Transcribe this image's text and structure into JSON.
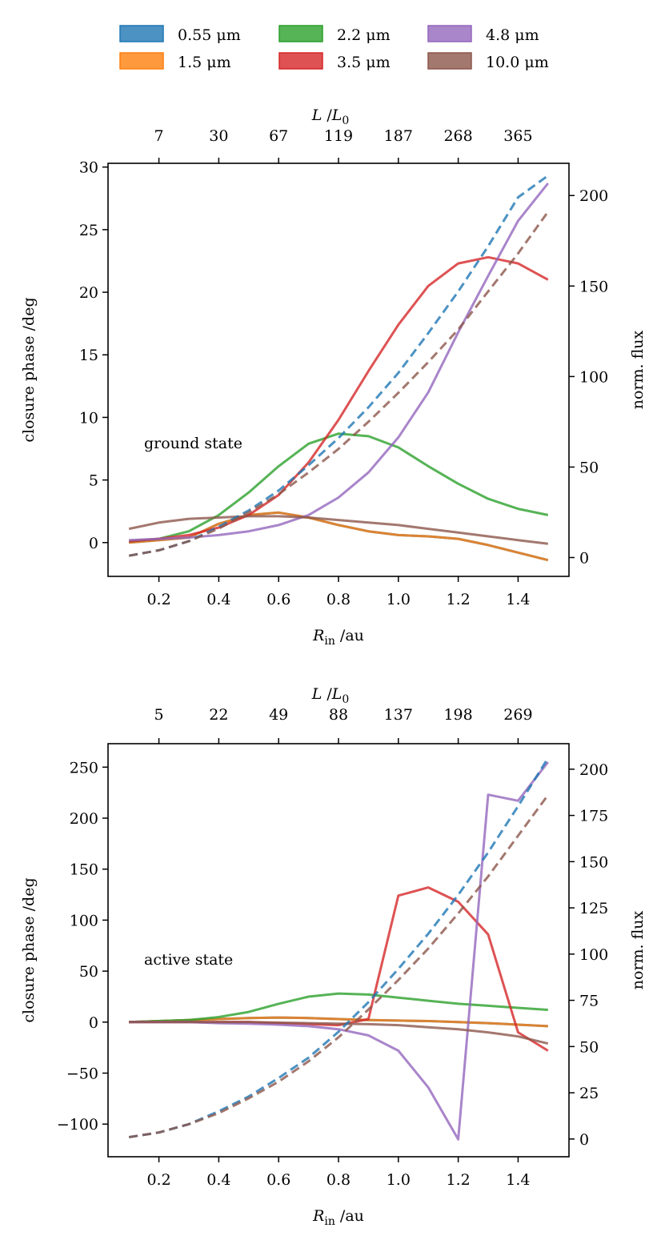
{
  "colors": {
    "blue": "#1f77b4",
    "orange": "#ff7f0e",
    "green": "#2ca02c",
    "red": "#d62728",
    "purple": "#9467bd",
    "brown": "#8c564b"
  },
  "legend": [
    {
      "label": "0.55 μm",
      "color": "#1f77b4"
    },
    {
      "label": "1.5 μm",
      "color": "#ff7f0e"
    },
    {
      "label": "2.2 μm",
      "color": "#2ca02c"
    },
    {
      "label": "3.5 μm",
      "color": "#d62728"
    },
    {
      "label": "4.8 μm",
      "color": "#9467bd"
    },
    {
      "label": "10.0 μm",
      "color": "#8c564b"
    }
  ],
  "chart_data": [
    {
      "type": "line",
      "annotation": "ground state",
      "xlabel": "R_in /au",
      "ylabel": "closure phase /deg",
      "ylabel_right": "norm. flux",
      "xlabel_top": "L /L_0",
      "xlim": [
        0.03,
        1.57
      ],
      "ylim": [
        -2.7,
        30.3
      ],
      "ylim_right": [
        -10.4,
        217.8
      ],
      "xticks": [
        "0.2",
        "0.4",
        "0.6",
        "0.8",
        "1.0",
        "1.2",
        "1.4"
      ],
      "xtick_values": [
        0.2,
        0.4,
        0.6,
        0.8,
        1.0,
        1.2,
        1.4
      ],
      "yticks": [
        "0",
        "5",
        "10",
        "15",
        "20",
        "25",
        "30"
      ],
      "ytick_values": [
        0,
        5,
        10,
        15,
        20,
        25,
        30
      ],
      "yticks_right": [
        "0",
        "50",
        "100",
        "150",
        "200"
      ],
      "ytick_values_right": [
        0,
        50,
        100,
        150,
        200
      ],
      "xticks_top": [
        "7",
        "30",
        "67",
        "119",
        "187",
        "268",
        "365"
      ],
      "x": [
        0.1,
        0.2,
        0.3,
        0.4,
        0.5,
        0.6,
        0.7,
        0.8,
        0.9,
        1.0,
        1.1,
        1.2,
        1.3,
        1.4,
        1.5
      ],
      "series": [
        {
          "name": "0.55 μm",
          "axis": "left",
          "values": [
            0.0,
            0.2,
            0.4,
            1.5,
            2.2,
            2.4,
            2.0,
            1.4,
            0.9,
            0.6,
            0.5,
            0.3,
            -0.2,
            -0.8,
            -1.4
          ]
        },
        {
          "name": "1.5 μm",
          "axis": "left",
          "values": [
            0.0,
            0.2,
            0.4,
            1.5,
            2.2,
            2.4,
            2.0,
            1.4,
            0.9,
            0.6,
            0.5,
            0.3,
            -0.2,
            -0.8,
            -1.4
          ]
        },
        {
          "name": "2.2 μm",
          "axis": "left",
          "values": [
            0.1,
            0.3,
            0.9,
            2.2,
            4.0,
            6.1,
            7.9,
            8.7,
            8.5,
            7.6,
            6.1,
            4.7,
            3.5,
            2.7,
            2.2
          ]
        },
        {
          "name": "3.5 μm",
          "axis": "left",
          "values": [
            0.1,
            0.3,
            0.6,
            1.2,
            2.2,
            3.8,
            6.4,
            9.8,
            13.7,
            17.4,
            20.5,
            22.3,
            22.8,
            22.3,
            21.0
          ]
        },
        {
          "name": "4.8 μm",
          "axis": "left",
          "values": [
            0.2,
            0.3,
            0.4,
            0.6,
            0.9,
            1.4,
            2.2,
            3.6,
            5.6,
            8.4,
            12.0,
            16.8,
            21.3,
            25.7,
            28.7
          ]
        },
        {
          "name": "10.0 μm",
          "axis": "left",
          "values": [
            1.1,
            1.6,
            1.9,
            2.0,
            2.1,
            2.1,
            2.0,
            1.8,
            1.6,
            1.4,
            1.1,
            0.8,
            0.5,
            0.2,
            -0.1
          ]
        },
        {
          "name": "0.55 μm flux",
          "axis": "right",
          "dashed": true,
          "values": [
            1,
            4,
            9,
            17,
            26,
            37,
            51,
            66,
            83,
            102,
            124,
            147,
            172,
            199,
            211
          ]
        },
        {
          "name": "10.0 μm flux",
          "axis": "right",
          "dashed": true,
          "values": [
            1,
            4,
            9,
            16,
            25,
            35,
            47,
            60,
            75,
            91,
            108,
            126,
            147,
            168,
            191
          ]
        }
      ]
    },
    {
      "type": "line",
      "annotation": "active state",
      "xlabel": "R_in /au",
      "ylabel": "closure phase /deg",
      "ylabel_right": "norm. flux",
      "xlabel_top": "L /L_0",
      "xlim": [
        0.03,
        1.57
      ],
      "ylim": [
        -132,
        273
      ],
      "ylim_right": [
        -9.6,
        213.8
      ],
      "xticks": [
        "0.2",
        "0.4",
        "0.6",
        "0.8",
        "1.0",
        "1.2",
        "1.4"
      ],
      "xtick_values": [
        0.2,
        0.4,
        0.6,
        0.8,
        1.0,
        1.2,
        1.4
      ],
      "yticks": [
        "−100",
        "−50",
        "0",
        "50",
        "100",
        "150",
        "200",
        "250"
      ],
      "ytick_values": [
        -100,
        -50,
        0,
        50,
        100,
        150,
        200,
        250
      ],
      "yticks_right": [
        "0",
        "25",
        "50",
        "75",
        "100",
        "125",
        "150",
        "175",
        "200"
      ],
      "ytick_values_right": [
        0,
        25,
        50,
        75,
        100,
        125,
        150,
        175,
        200
      ],
      "xticks_top": [
        "5",
        "22",
        "49",
        "88",
        "137",
        "198",
        "269"
      ],
      "x": [
        0.1,
        0.2,
        0.3,
        0.4,
        0.5,
        0.6,
        0.7,
        0.8,
        0.9,
        1.0,
        1.1,
        1.2,
        1.3,
        1.4,
        1.5
      ],
      "series": [
        {
          "name": "0.55 μm",
          "axis": "left",
          "values": [
            0,
            1,
            2,
            3,
            4,
            4.5,
            4,
            3,
            2,
            1.5,
            1,
            0,
            -1,
            -2.5,
            -4
          ]
        },
        {
          "name": "1.5 μm",
          "axis": "left",
          "values": [
            0,
            1,
            2,
            3,
            4,
            4.5,
            4,
            3,
            2,
            1.5,
            1,
            0,
            -1,
            -2.5,
            -4
          ]
        },
        {
          "name": "2.2 μm",
          "axis": "left",
          "values": [
            0,
            1,
            2,
            5,
            10,
            18,
            25,
            28,
            27,
            24,
            21,
            18,
            16,
            14,
            12
          ]
        },
        {
          "name": "3.5 μm",
          "axis": "left",
          "values": [
            0,
            0,
            0,
            0,
            0,
            -1,
            -2,
            -3,
            3,
            124,
            132,
            118,
            86,
            -10,
            -28
          ]
        },
        {
          "name": "4.8 μm",
          "axis": "left",
          "values": [
            0,
            0,
            0,
            -1,
            -1.5,
            -2.5,
            -4,
            -7,
            -13,
            -28,
            -64,
            -115,
            223,
            217,
            255
          ]
        },
        {
          "name": "10.0 μm",
          "axis": "left",
          "values": [
            0,
            0,
            0,
            0,
            0,
            -0.5,
            -1,
            -1.5,
            -2,
            -3,
            -5,
            -7,
            -10,
            -14,
            -21
          ]
        },
        {
          "name": "0.55 μm flux",
          "axis": "right",
          "dashed": true,
          "values": [
            1,
            3.5,
            8,
            15,
            23,
            33,
            44,
            58,
            74,
            92,
            111,
            132,
            155,
            180,
            206
          ]
        },
        {
          "name": "10.0 μm flux",
          "axis": "right",
          "dashed": true,
          "values": [
            1,
            3.5,
            8,
            14,
            22,
            31,
            42,
            55,
            70,
            86,
            103,
            122,
            142,
            164,
            186
          ]
        }
      ]
    }
  ]
}
